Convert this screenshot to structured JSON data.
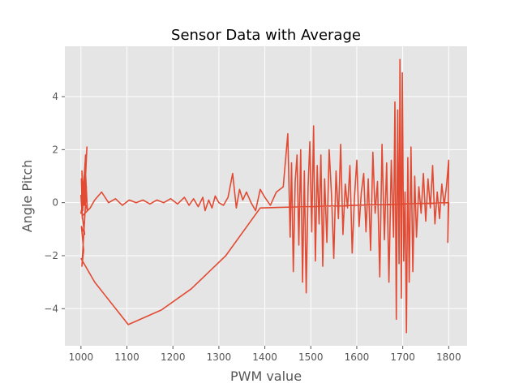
{
  "chart_data": {
    "type": "line",
    "title": "Sensor Data with Average",
    "xlabel": "PWM value",
    "ylabel": "Angle Pitch",
    "xlim": [
      965,
      1840
    ],
    "ylim": [
      -5.4,
      5.9
    ],
    "x_ticks": [
      1000,
      1100,
      1200,
      1300,
      1400,
      1500,
      1600,
      1700,
      1800
    ],
    "y_ticks": [
      -4,
      -2,
      0,
      2,
      4
    ],
    "grid": true,
    "legend": "none",
    "colors": {
      "line": "#E24A33",
      "plot_background": "#E5E5E5",
      "grid": "#FFFFFF",
      "text": "#555555"
    },
    "series": [
      {
        "points": [
          [
            1000,
            0.3
          ],
          [
            1003,
            -0.6
          ],
          [
            1001,
            0.9
          ],
          [
            1004,
            -0.3
          ],
          [
            1002,
            1.2
          ],
          [
            1006,
            0.1
          ],
          [
            1000,
            -0.4
          ],
          [
            1008,
            0.4
          ],
          [
            1004,
            -0.2
          ],
          [
            1010,
            1.8
          ],
          [
            1006,
            0.0
          ],
          [
            1013,
            2.1
          ],
          [
            1007,
            -0.1
          ],
          [
            1012,
            0.6
          ],
          [
            1005,
            0.2
          ],
          [
            1014,
            -0.3
          ],
          [
            1009,
            1.5
          ],
          [
            1003,
            -0.2
          ],
          [
            1011,
            0.3
          ],
          [
            1002,
            -2.4
          ],
          [
            1006,
            -1.8
          ],
          [
            1001,
            -0.9
          ],
          [
            1008,
            -1.2
          ],
          [
            1003,
            -0.5
          ],
          [
            1020,
            -0.2
          ],
          [
            1030,
            0.1
          ],
          [
            1045,
            0.4
          ],
          [
            1060,
            0.0
          ],
          [
            1075,
            0.15
          ],
          [
            1090,
            -0.1
          ],
          [
            1105,
            0.1
          ],
          [
            1120,
            0.0
          ],
          [
            1135,
            0.1
          ],
          [
            1150,
            -0.05
          ],
          [
            1165,
            0.1
          ],
          [
            1180,
            0.0
          ],
          [
            1195,
            0.15
          ],
          [
            1210,
            -0.05
          ],
          [
            1225,
            0.2
          ],
          [
            1235,
            -0.1
          ],
          [
            1245,
            0.15
          ],
          [
            1255,
            -0.15
          ],
          [
            1265,
            0.2
          ],
          [
            1270,
            -0.3
          ],
          [
            1278,
            0.1
          ],
          [
            1285,
            -0.2
          ],
          [
            1292,
            0.25
          ],
          [
            1300,
            0.0
          ],
          [
            1310,
            -0.1
          ],
          [
            1320,
            0.2
          ],
          [
            1330,
            1.1
          ],
          [
            1338,
            -0.2
          ],
          [
            1345,
            0.5
          ],
          [
            1352,
            0.1
          ],
          [
            1360,
            0.4
          ],
          [
            1370,
            0.0
          ],
          [
            1380,
            -0.3
          ],
          [
            1390,
            0.5
          ],
          [
            1400,
            0.2
          ],
          [
            1412,
            -0.1
          ],
          [
            1425,
            0.4
          ],
          [
            1440,
            0.6
          ],
          [
            1450,
            2.6
          ],
          [
            1455,
            -1.3
          ],
          [
            1458,
            1.5
          ],
          [
            1462,
            -2.6
          ],
          [
            1466,
            0.8
          ],
          [
            1470,
            1.8
          ],
          [
            1474,
            -1.6
          ],
          [
            1478,
            2.0
          ],
          [
            1482,
            -3.0
          ],
          [
            1486,
            1.2
          ],
          [
            1490,
            -3.4
          ],
          [
            1494,
            0.6
          ],
          [
            1498,
            2.3
          ],
          [
            1502,
            -1.1
          ],
          [
            1506,
            2.9
          ],
          [
            1510,
            -2.2
          ],
          [
            1514,
            1.4
          ],
          [
            1518,
            -0.8
          ],
          [
            1522,
            1.8
          ],
          [
            1526,
            -2.4
          ],
          [
            1530,
            0.9
          ],
          [
            1535,
            -1.5
          ],
          [
            1540,
            2.0
          ],
          [
            1545,
            0.3
          ],
          [
            1550,
            -2.1
          ],
          [
            1555,
            1.2
          ],
          [
            1560,
            -0.6
          ],
          [
            1565,
            2.2
          ],
          [
            1570,
            -1.2
          ],
          [
            1575,
            0.7
          ],
          [
            1580,
            -0.2
          ],
          [
            1585,
            1.4
          ],
          [
            1590,
            -1.9
          ],
          [
            1595,
            0.2
          ],
          [
            1600,
            1.6
          ],
          [
            1605,
            -0.9
          ],
          [
            1610,
            0.4
          ],
          [
            1615,
            1.1
          ],
          [
            1620,
            -1.1
          ],
          [
            1625,
            0.9
          ],
          [
            1630,
            -1.8
          ],
          [
            1635,
            1.9
          ],
          [
            1640,
            -0.4
          ],
          [
            1645,
            0.8
          ],
          [
            1650,
            -2.8
          ],
          [
            1655,
            2.2
          ],
          [
            1660,
            -1.4
          ],
          [
            1665,
            1.5
          ],
          [
            1670,
            -3.0
          ],
          [
            1675,
            1.6
          ],
          [
            1680,
            -1.3
          ],
          [
            1683,
            3.8
          ],
          [
            1686,
            -4.4
          ],
          [
            1689,
            3.5
          ],
          [
            1692,
            -2.3
          ],
          [
            1694,
            5.4
          ],
          [
            1697,
            -3.6
          ],
          [
            1699,
            4.9
          ],
          [
            1702,
            -2.2
          ],
          [
            1705,
            0.4
          ],
          [
            1708,
            -4.9
          ],
          [
            1711,
            1.7
          ],
          [
            1714,
            -3.0
          ],
          [
            1718,
            2.1
          ],
          [
            1722,
            -2.6
          ],
          [
            1726,
            1.0
          ],
          [
            1730,
            -1.3
          ],
          [
            1735,
            0.6
          ],
          [
            1740,
            -0.4
          ],
          [
            1745,
            1.1
          ],
          [
            1750,
            -0.7
          ],
          [
            1755,
            0.9
          ],
          [
            1760,
            -0.2
          ],
          [
            1765,
            1.4
          ],
          [
            1770,
            -0.8
          ],
          [
            1775,
            0.4
          ],
          [
            1780,
            -0.6
          ],
          [
            1785,
            0.7
          ],
          [
            1790,
            -0.1
          ],
          [
            1795,
            0.6
          ],
          [
            1800,
            1.6
          ],
          [
            1798,
            -1.5
          ],
          [
            1800,
            0.0
          ],
          [
            1390,
            -0.2
          ],
          [
            1315,
            -2.0
          ],
          [
            1240,
            -3.25
          ],
          [
            1175,
            -4.05
          ],
          [
            1103,
            -4.6
          ],
          [
            1030,
            -3.0
          ],
          [
            1000,
            -2.1
          ]
        ]
      }
    ]
  }
}
